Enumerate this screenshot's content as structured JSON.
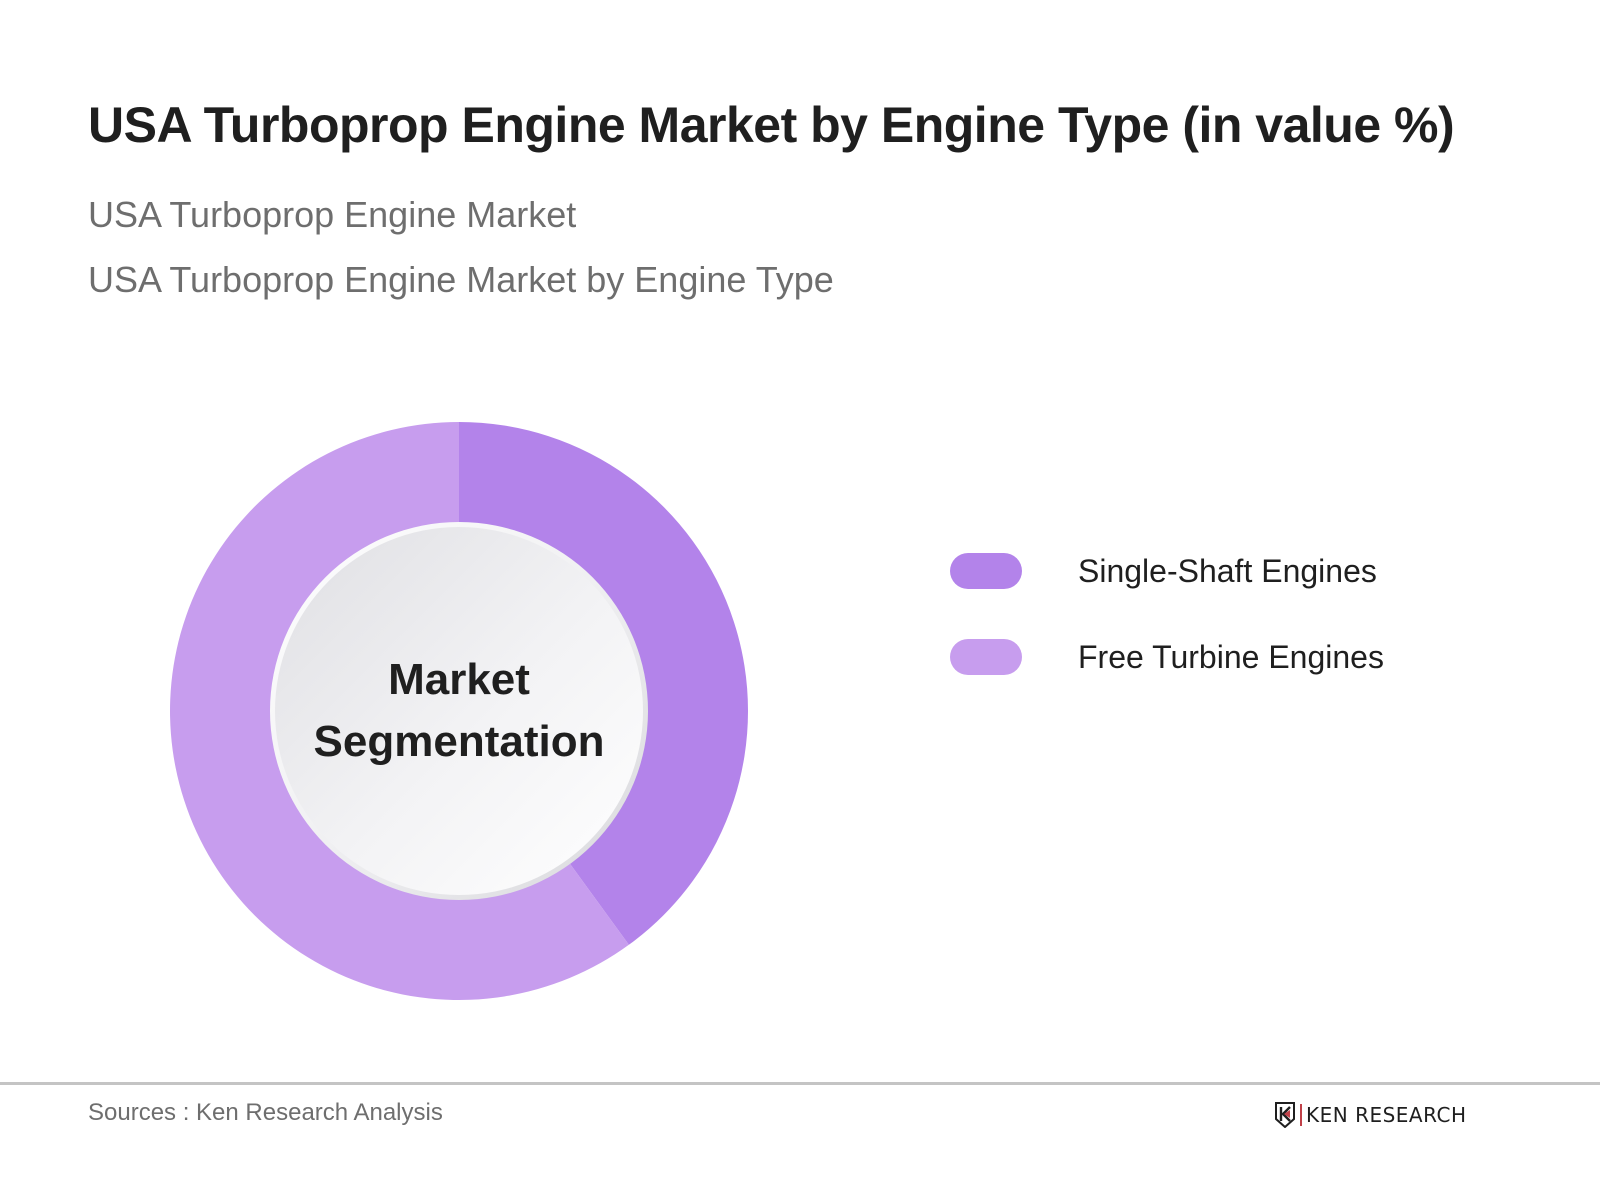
{
  "header": {
    "title": "USA Turboprop Engine Market by Engine Type (in value %)",
    "subtitle_1": "USA Turboprop Engine Market",
    "subtitle_2": "USA Turboprop Engine Market by Engine Type"
  },
  "chart": {
    "center_label_line1": "Market",
    "center_label_line2": "Segmentation"
  },
  "legend": {
    "items": [
      {
        "label": "Single-Shaft Engines",
        "color": "#B383EA"
      },
      {
        "label": "Free Turbine Engines",
        "color": "#C79DEE"
      }
    ]
  },
  "footer": {
    "source": "Sources : Ken Research Analysis",
    "logo_text": "KEN RESEARCH",
    "logo_icon": "ken-research-logo-icon"
  },
  "chart_data": {
    "type": "pie",
    "variant": "donut",
    "title": "USA Turboprop Engine Market by Engine Type (in value %)",
    "subtitle": [
      "USA Turboprop Engine Market",
      "USA Turboprop Engine Market by Engine Type"
    ],
    "center_text": "Market Segmentation",
    "categories": [
      "Single-Shaft Engines",
      "Free Turbine Engines"
    ],
    "values": [
      40,
      60
    ],
    "unit": "%",
    "colors": [
      "#B383EA",
      "#C79DEE"
    ],
    "start_angle_deg": 0,
    "direction": "clockwise",
    "legend_position": "right",
    "data_labels": false,
    "source": "Sources : Ken Research Analysis"
  }
}
